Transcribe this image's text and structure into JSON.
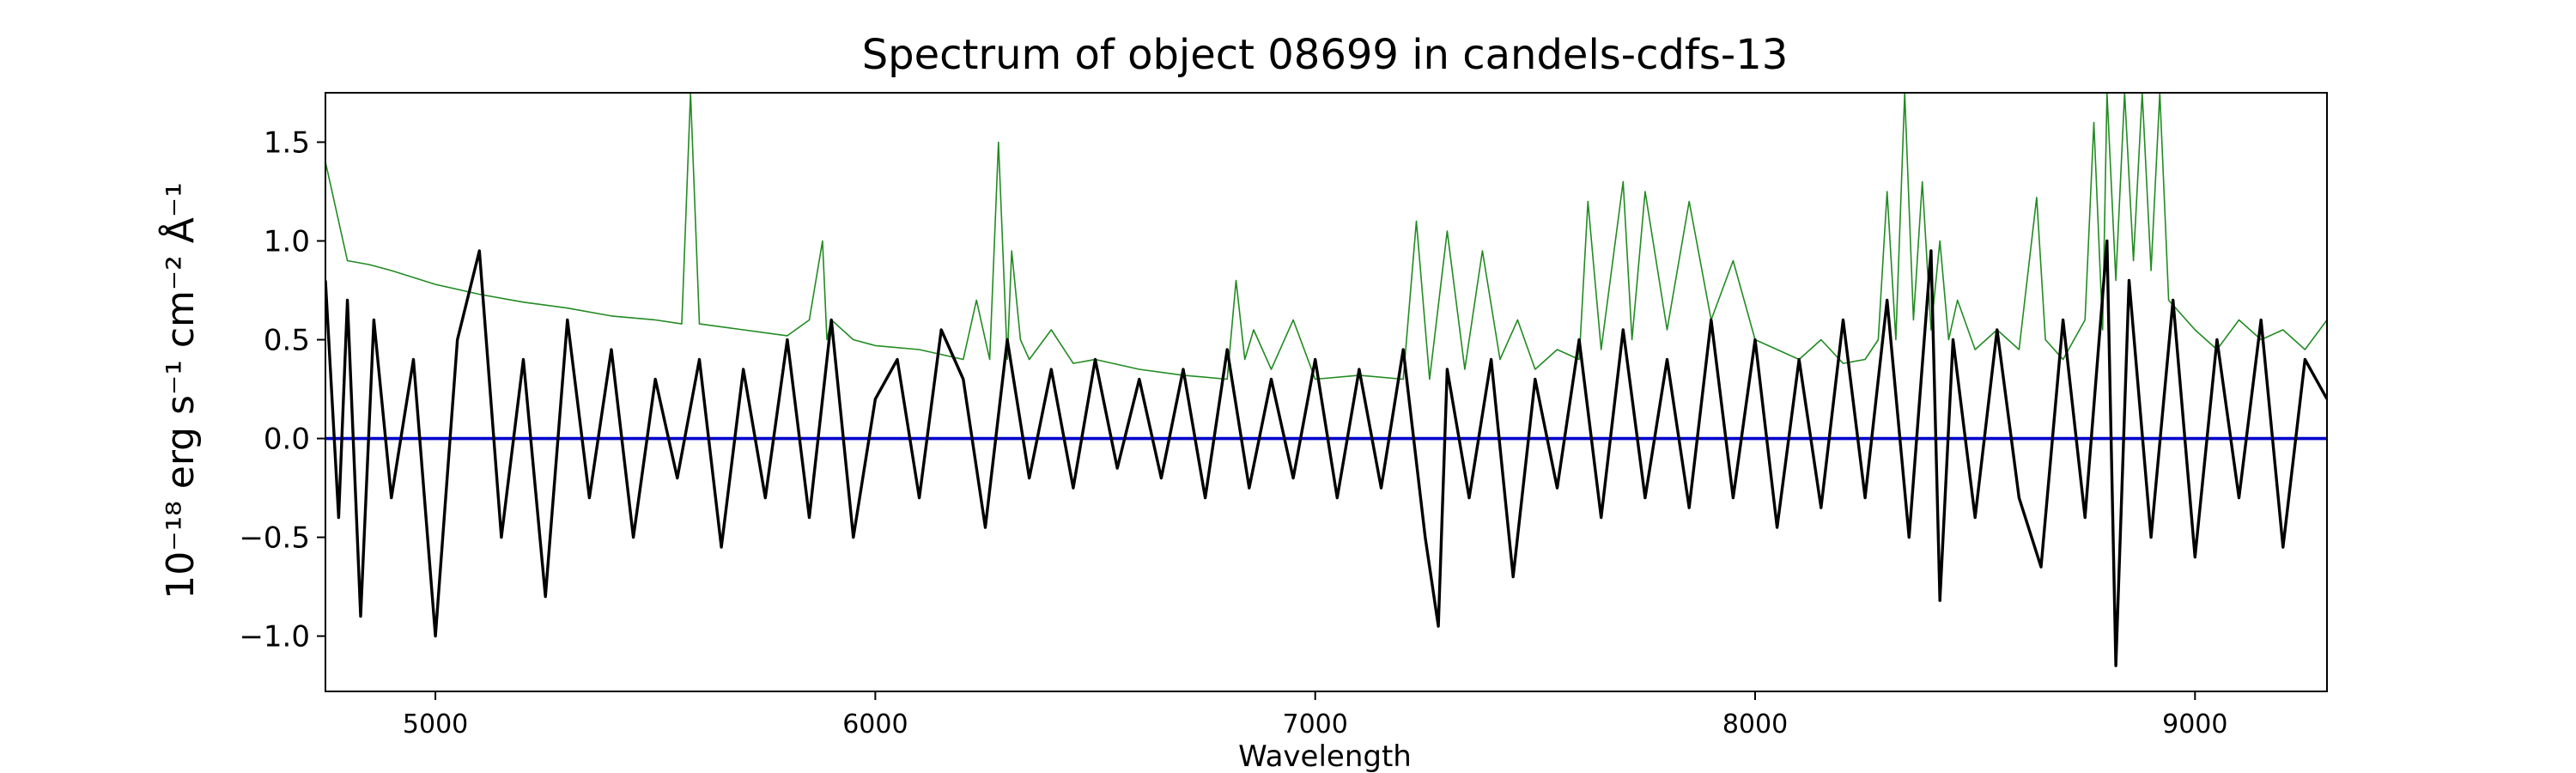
{
  "chart_data": {
    "type": "line",
    "title": "Spectrum of object 08699 in candels-cdfs-13",
    "xlabel": "Wavelength",
    "ylabel": "10⁻¹⁸ erg s⁻¹ cm⁻² Å⁻¹",
    "xlim": [
      4750,
      9300
    ],
    "ylim": [
      -1.28,
      1.75
    ],
    "xticks": [
      5000,
      6000,
      7000,
      8000,
      9000
    ],
    "xtick_labels": [
      "5000",
      "6000",
      "7000",
      "8000",
      "9000"
    ],
    "yticks": [
      -1.0,
      -0.5,
      0.0,
      0.5,
      1.0,
      1.5
    ],
    "ytick_labels": [
      "−1.0",
      "−0.5",
      "0.0",
      "0.5",
      "1.0",
      "1.5"
    ],
    "grid": false,
    "series": [
      {
        "role": "flux",
        "color": "#000000",
        "x": [
          4750,
          4780,
          4800,
          4830,
          4860,
          4900,
          4950,
          5000,
          5050,
          5100,
          5150,
          5200,
          5250,
          5300,
          5350,
          5400,
          5450,
          5500,
          5550,
          5600,
          5650,
          5700,
          5750,
          5800,
          5850,
          5900,
          5950,
          6000,
          6050,
          6100,
          6150,
          6200,
          6250,
          6300,
          6350,
          6400,
          6450,
          6500,
          6550,
          6600,
          6650,
          6700,
          6750,
          6800,
          6850,
          6900,
          6950,
          7000,
          7050,
          7100,
          7150,
          7200,
          7250,
          7280,
          7300,
          7350,
          7400,
          7450,
          7500,
          7550,
          7600,
          7650,
          7700,
          7750,
          7800,
          7850,
          7900,
          7950,
          8000,
          8050,
          8100,
          8150,
          8200,
          8250,
          8300,
          8350,
          8400,
          8420,
          8450,
          8500,
          8550,
          8600,
          8650,
          8700,
          8750,
          8800,
          8820,
          8850,
          8900,
          8950,
          9000,
          9050,
          9100,
          9150,
          9200,
          9250,
          9300
        ],
        "y": [
          0.8,
          -0.4,
          0.7,
          -0.9,
          0.6,
          -0.3,
          0.4,
          -1.0,
          0.5,
          0.95,
          -0.5,
          0.4,
          -0.8,
          0.6,
          -0.3,
          0.45,
          -0.5,
          0.3,
          -0.2,
          0.4,
          -0.55,
          0.35,
          -0.3,
          0.5,
          -0.4,
          0.6,
          -0.5,
          0.2,
          0.4,
          -0.3,
          0.55,
          0.3,
          -0.45,
          0.5,
          -0.2,
          0.35,
          -0.25,
          0.4,
          -0.15,
          0.3,
          -0.2,
          0.35,
          -0.3,
          0.45,
          -0.25,
          0.3,
          -0.2,
          0.4,
          -0.3,
          0.35,
          -0.25,
          0.45,
          -0.5,
          -0.95,
          0.35,
          -0.3,
          0.4,
          -0.7,
          0.3,
          -0.25,
          0.5,
          -0.4,
          0.55,
          -0.3,
          0.4,
          -0.35,
          0.6,
          -0.3,
          0.5,
          -0.45,
          0.4,
          -0.35,
          0.6,
          -0.3,
          0.7,
          -0.5,
          0.95,
          -0.82,
          0.5,
          -0.4,
          0.55,
          -0.3,
          -0.65,
          0.6,
          -0.4,
          1.0,
          -1.15,
          0.8,
          -0.5,
          0.7,
          -0.6,
          0.5,
          -0.3,
          0.6,
          -0.55,
          0.4,
          0.2
        ]
      },
      {
        "role": "noise",
        "color": "#228b22",
        "x": [
          4750,
          4800,
          4850,
          4900,
          5000,
          5100,
          5200,
          5300,
          5400,
          5500,
          5560,
          5580,
          5600,
          5700,
          5800,
          5850,
          5880,
          5890,
          5900,
          5950,
          6000,
          6100,
          6200,
          6230,
          6260,
          6280,
          6300,
          6310,
          6330,
          6350,
          6400,
          6450,
          6500,
          6600,
          6700,
          6800,
          6820,
          6840,
          6860,
          6900,
          6950,
          7000,
          7100,
          7200,
          7230,
          7260,
          7300,
          7340,
          7380,
          7420,
          7460,
          7500,
          7550,
          7600,
          7620,
          7650,
          7700,
          7720,
          7750,
          7800,
          7850,
          7900,
          7950,
          8000,
          8050,
          8100,
          8150,
          8200,
          8250,
          8280,
          8300,
          8320,
          8340,
          8360,
          8380,
          8400,
          8420,
          8440,
          8460,
          8500,
          8550,
          8600,
          8640,
          8660,
          8700,
          8750,
          8770,
          8790,
          8800,
          8820,
          8840,
          8860,
          8880,
          8900,
          8920,
          8940,
          9000,
          9050,
          9100,
          9150,
          9200,
          9250,
          9300
        ],
        "y": [
          1.4,
          0.9,
          0.88,
          0.85,
          0.78,
          0.73,
          0.69,
          0.66,
          0.62,
          0.6,
          0.58,
          1.75,
          0.58,
          0.55,
          0.52,
          0.6,
          1.0,
          0.5,
          0.6,
          0.5,
          0.47,
          0.45,
          0.4,
          0.7,
          0.4,
          1.5,
          0.4,
          0.95,
          0.5,
          0.4,
          0.55,
          0.38,
          0.4,
          0.35,
          0.32,
          0.3,
          0.8,
          0.4,
          0.55,
          0.35,
          0.6,
          0.3,
          0.32,
          0.3,
          1.1,
          0.3,
          1.05,
          0.35,
          0.95,
          0.4,
          0.6,
          0.35,
          0.45,
          0.4,
          1.2,
          0.45,
          1.3,
          0.5,
          1.25,
          0.55,
          1.2,
          0.6,
          0.9,
          0.5,
          0.45,
          0.4,
          0.5,
          0.38,
          0.4,
          0.5,
          1.25,
          0.5,
          1.75,
          0.6,
          1.3,
          0.55,
          1.0,
          0.5,
          0.7,
          0.45,
          0.55,
          0.45,
          1.22,
          0.5,
          0.4,
          0.6,
          1.6,
          0.55,
          1.75,
          0.8,
          1.75,
          0.9,
          1.75,
          0.85,
          1.75,
          0.7,
          0.55,
          0.45,
          0.6,
          0.5,
          0.55,
          0.45,
          0.6
        ]
      },
      {
        "role": "zero",
        "color": "#0000cd",
        "x": [
          4750,
          9300
        ],
        "y": [
          0,
          0
        ]
      }
    ]
  }
}
